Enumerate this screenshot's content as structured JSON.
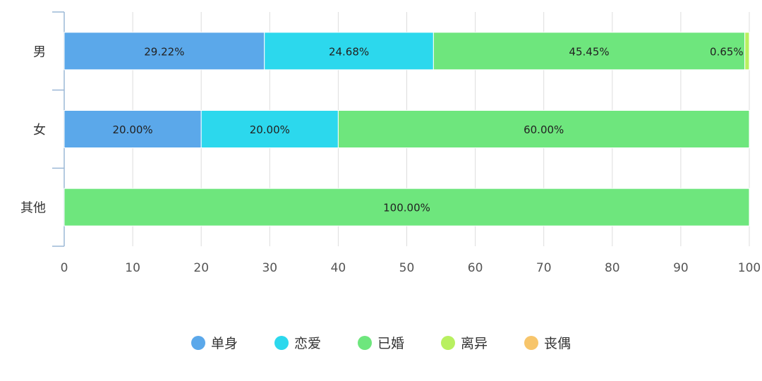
{
  "chart_data": {
    "type": "bar",
    "orientation": "horizontal",
    "stacked": true,
    "categories": [
      "男",
      "女",
      "其他"
    ],
    "series": [
      {
        "name": "单身",
        "color": "#5ba8ea",
        "values": [
          29.22,
          20.0,
          0
        ],
        "labels": [
          "29.22%",
          "20.00%",
          ""
        ]
      },
      {
        "name": "恋爱",
        "color": "#2cd8ed",
        "values": [
          24.68,
          20.0,
          0
        ],
        "labels": [
          "24.68%",
          "20.00%",
          ""
        ]
      },
      {
        "name": "已婚",
        "color": "#6ee67d",
        "values": [
          45.45,
          60.0,
          100.0
        ],
        "labels": [
          "45.45%",
          "60.00%",
          "100.00%"
        ]
      },
      {
        "name": "离异",
        "color": "#b8f060",
        "values": [
          0.65,
          0,
          0
        ],
        "labels": [
          "0.65%",
          "",
          ""
        ]
      },
      {
        "name": "丧偶",
        "color": "#f7c56b",
        "values": [
          0,
          0,
          0
        ],
        "labels": [
          "",
          "",
          ""
        ]
      }
    ],
    "xlim": [
      0,
      100
    ],
    "xticks": [
      0,
      10,
      20,
      30,
      40,
      50,
      60,
      70,
      80,
      90,
      100
    ],
    "grid": true,
    "legend_position": "bottom"
  }
}
